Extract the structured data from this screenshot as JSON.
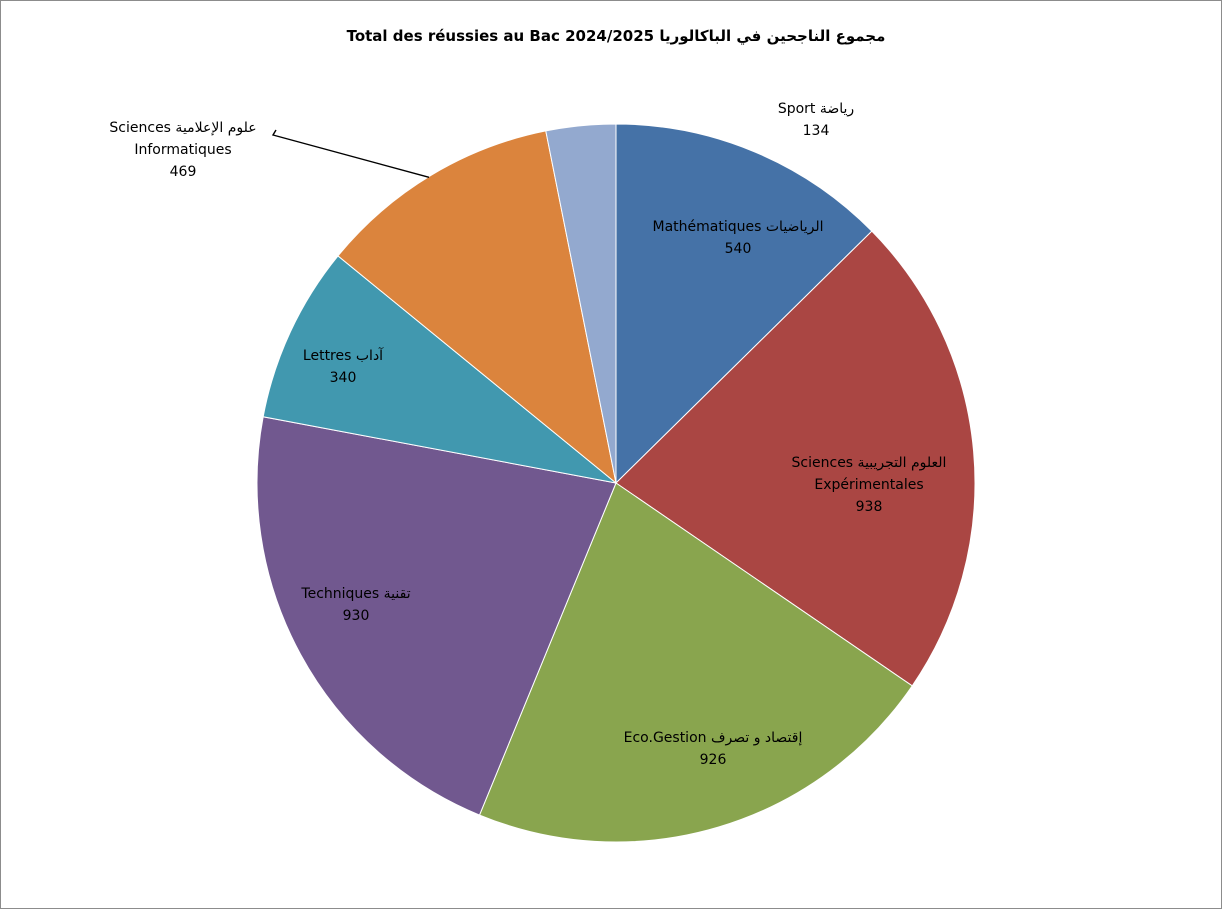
{
  "chart_data": {
    "type": "pie",
    "title": "مجموع الناجحين في الباكالوريا  2024/2025  Total des réussies au Bac",
    "slices": [
      {
        "label_line1": "الرياضيات   Mathématiques",
        "label_line2": "",
        "value": 540,
        "color": "#4572A7"
      },
      {
        "label_line1": "العلوم التجريبية   Sciences",
        "label_line2": "Expérimentales",
        "value": 938,
        "color": "#AA4643"
      },
      {
        "label_line1": "إقتصاد و تصرف        Eco.Gestion",
        "label_line2": "",
        "value": 926,
        "color": "#89A54E"
      },
      {
        "label_line1": "تقنية   Techniques",
        "label_line2": "",
        "value": 930,
        "color": "#71588F"
      },
      {
        "label_line1": "آداب   Lettres",
        "label_line2": "",
        "value": 340,
        "color": "#4198AF"
      },
      {
        "label_line1": "علوم الإعلامية   Sciences",
        "label_line2": "Informatiques",
        "value": 469,
        "color": "#DB843D"
      },
      {
        "label_line1": "رياضة   Sport",
        "label_line2": "",
        "value": 134,
        "color": "#93A9CF"
      }
    ],
    "legend": "none"
  }
}
